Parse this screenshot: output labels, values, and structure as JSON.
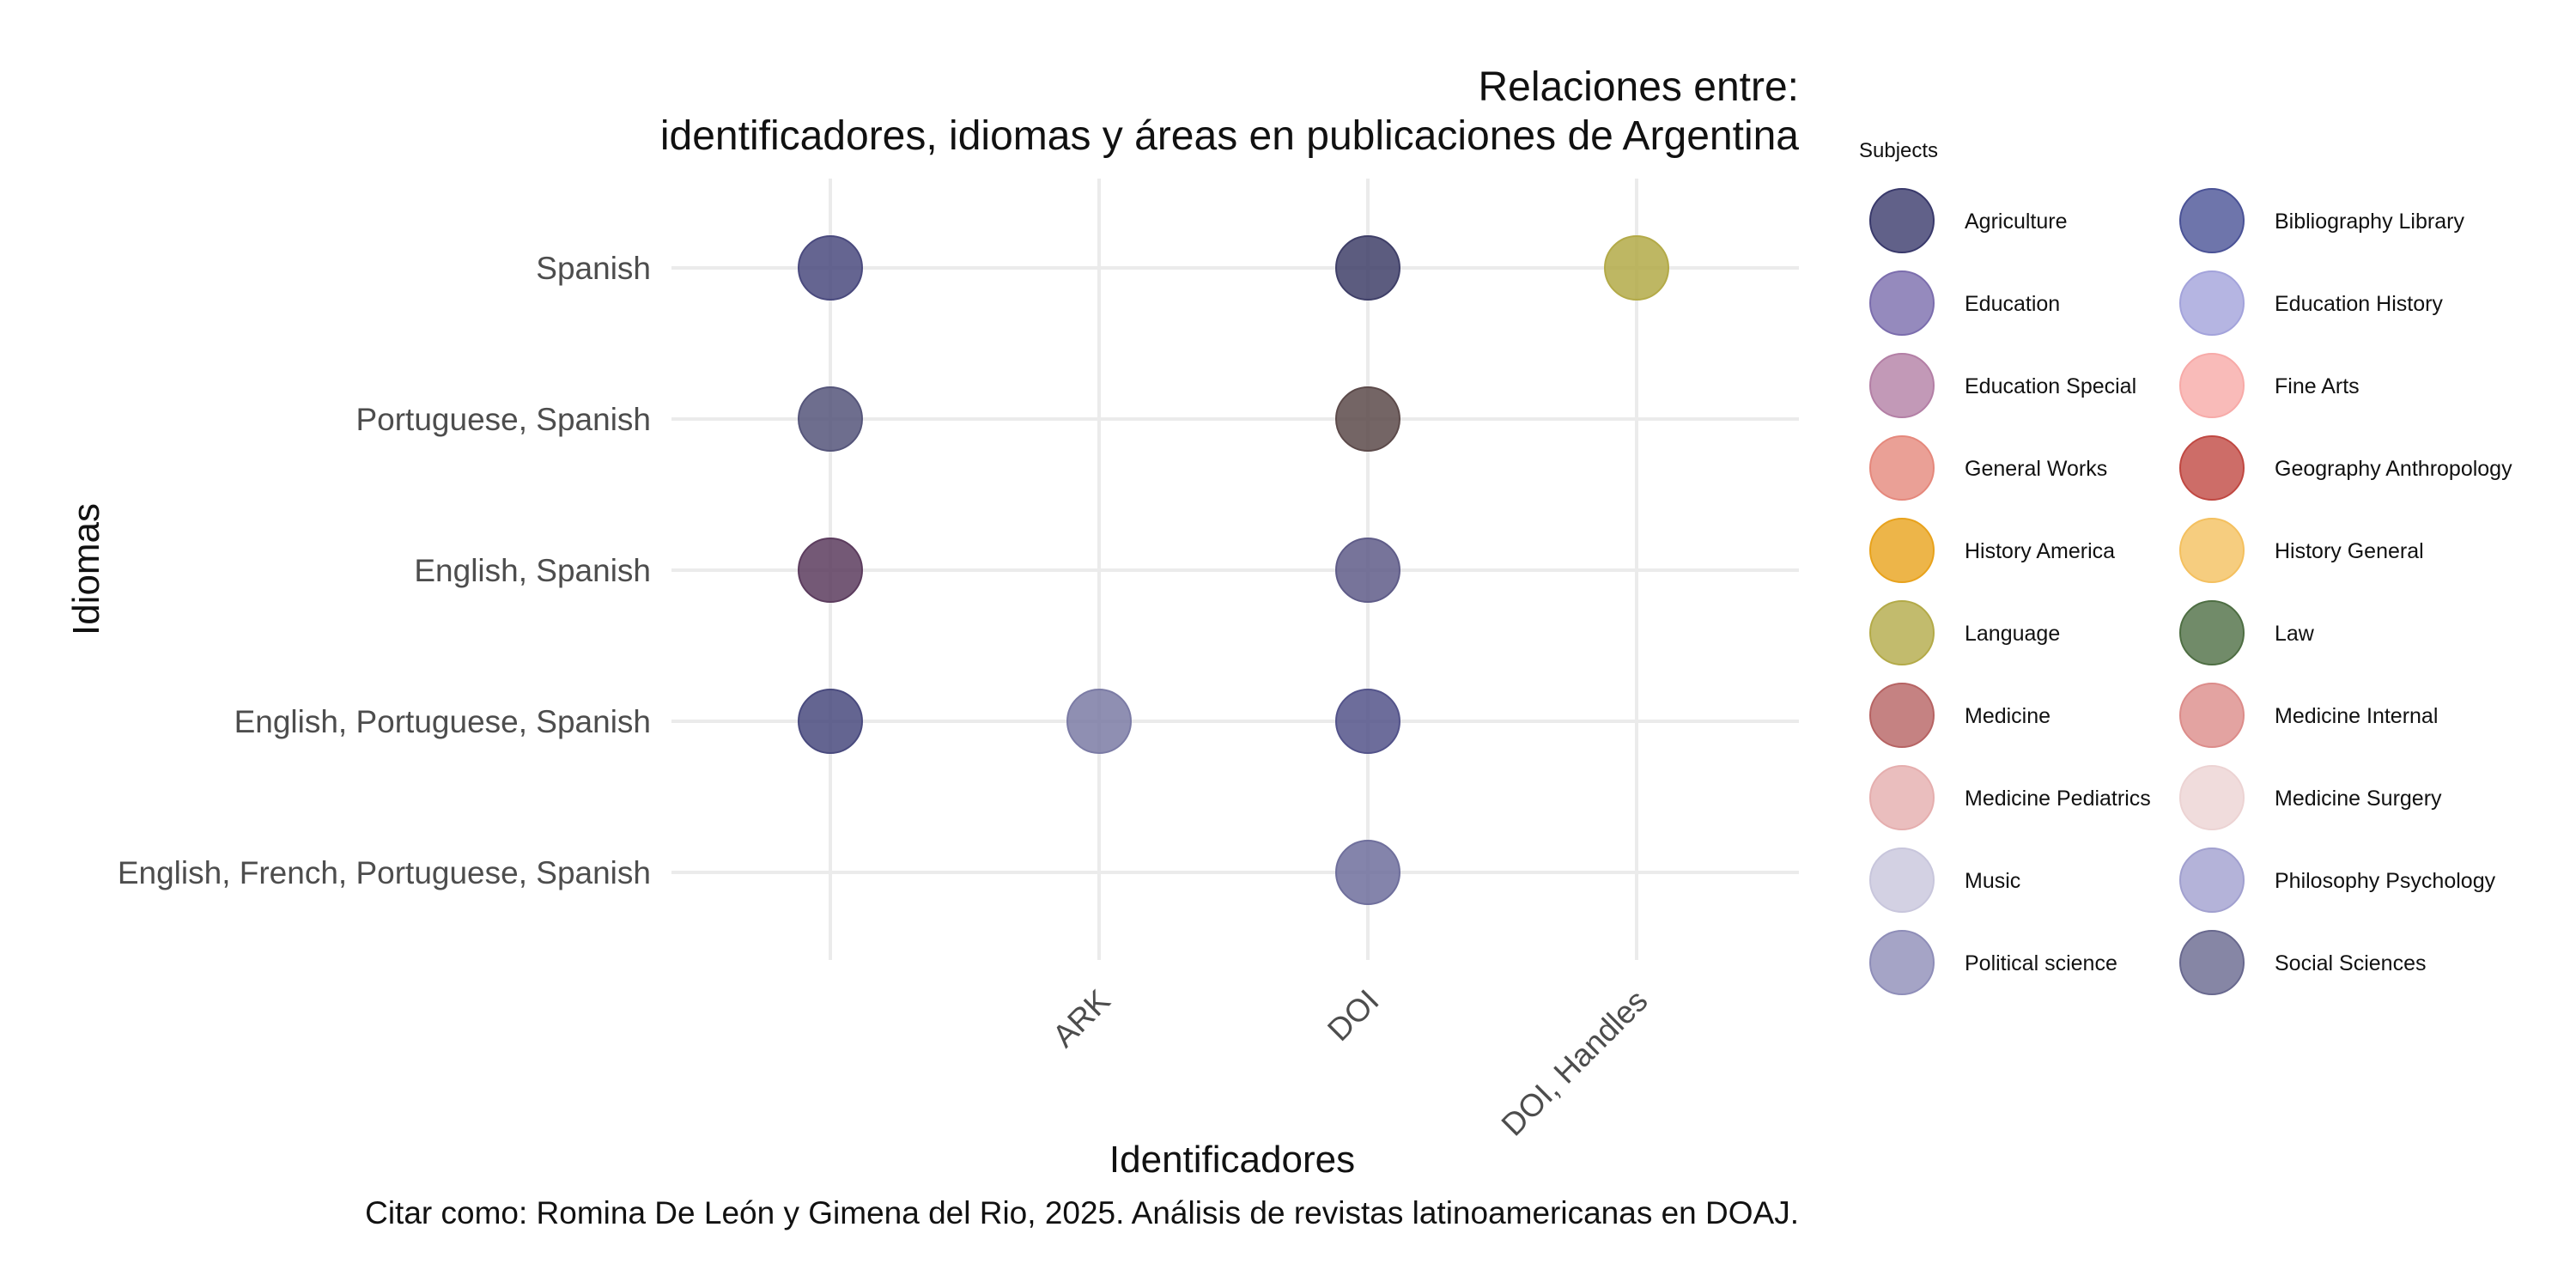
{
  "chart_data": {
    "type": "scatter",
    "title": [
      "Relaciones entre:",
      "identificadores, idiomas y áreas en publicaciones de Argentina"
    ],
    "xlabel": "Identificadores",
    "ylabel": "Idiomas",
    "caption": "Citar como: Romina De León y Gimena del Rio, 2025. Análisis de revistas latinoamericanas en DOAJ.",
    "x_categories": [
      "",
      "ARK",
      "DOI",
      "DOI, Handles"
    ],
    "y_categories": [
      "Spanish",
      "Portuguese, Spanish",
      "English, Spanish",
      "English, Portuguese, Spanish",
      "English, French, Portuguese, Spanish"
    ],
    "grid": true,
    "legend": {
      "title": "Subjects",
      "position": "right",
      "columns": 2,
      "items": [
        {
          "name": "Agriculture",
          "color": "#39396b"
        },
        {
          "name": "Bibliography Library",
          "color": "#4a5296"
        },
        {
          "name": "Education",
          "color": "#7b6dad"
        },
        {
          "name": "Education History",
          "color": "#a3a3db"
        },
        {
          "name": "Education Special",
          "color": "#b37fa5"
        },
        {
          "name": "Fine Arts",
          "color": "#f7aaa8"
        },
        {
          "name": "General Works",
          "color": "#e5887c"
        },
        {
          "name": "Geography Anthropology",
          "color": "#c04842"
        },
        {
          "name": "History America",
          "color": "#e8a21c"
        },
        {
          "name": "History General",
          "color": "#f4c05f"
        },
        {
          "name": "Language",
          "color": "#b3aa48"
        },
        {
          "name": "Law",
          "color": "#4e6e43"
        },
        {
          "name": "Medicine",
          "color": "#b66363"
        },
        {
          "name": "Medicine Internal",
          "color": "#dc8c8a"
        },
        {
          "name": "Medicine Pediatrics",
          "color": "#e5aeae"
        },
        {
          "name": "Medicine Surgery",
          "color": "#ecd3d3"
        },
        {
          "name": "Music",
          "color": "#c8c6dc"
        },
        {
          "name": "Philosophy Psychology",
          "color": "#a1a0cf"
        },
        {
          "name": "Political science",
          "color": "#8e8db8"
        },
        {
          "name": "Social Sciences",
          "color": "#68688e"
        }
      ]
    },
    "points": [
      {
        "x": "",
        "y": "Spanish",
        "color": "#4a4a7e"
      },
      {
        "x": "DOI",
        "y": "Spanish",
        "color": "#3f3f68"
      },
      {
        "x": "DOI, Handles",
        "y": "Spanish",
        "color": "#b3aa48"
      },
      {
        "x": "",
        "y": "Portuguese, Spanish",
        "color": "#55557a"
      },
      {
        "x": "DOI",
        "y": "Portuguese, Spanish",
        "color": "#5c4a4a"
      },
      {
        "x": "",
        "y": "English, Spanish",
        "color": "#5c3c5e"
      },
      {
        "x": "DOI",
        "y": "English, Spanish",
        "color": "#5f5c88"
      },
      {
        "x": "",
        "y": "English, Portuguese, Spanish",
        "color": "#494a7e"
      },
      {
        "x": "ARK",
        "y": "English, Portuguese, Spanish",
        "color": "#7b7ba5"
      },
      {
        "x": "DOI",
        "y": "English, Portuguese, Spanish",
        "color": "#53538a"
      },
      {
        "x": "DOI",
        "y": "English, French, Portuguese, Spanish",
        "color": "#6f6f9c"
      }
    ]
  }
}
